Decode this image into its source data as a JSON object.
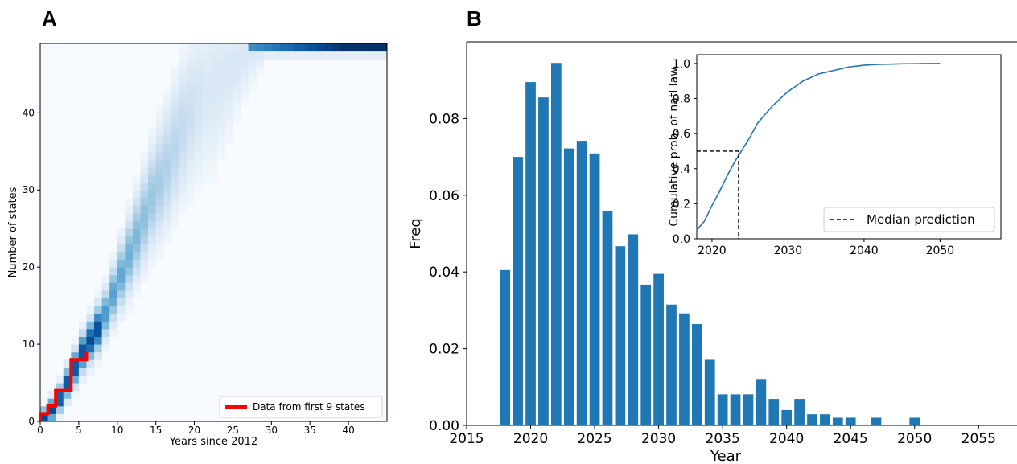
{
  "panel_labels": [
    "A",
    "B"
  ],
  "chart_data": [
    {
      "type": "heatmap",
      "panel": "A",
      "xlabel": "Years since 2012",
      "ylabel": "Number of states",
      "xlim": [
        0,
        45
      ],
      "ylim": [
        0,
        49
      ],
      "xticks": [
        0,
        5,
        10,
        15,
        20,
        25,
        30,
        35,
        40
      ],
      "yticks": [
        0,
        10,
        20,
        30,
        40
      ],
      "colormap": "Blues",
      "note_distribution": "probability density of number of states over time, concentrated along an S-shaped trajectory rising from 0 to 48",
      "density_center": [
        [
          0,
          0
        ],
        [
          1,
          1
        ],
        [
          2,
          2
        ],
        [
          3,
          4
        ],
        [
          4,
          6
        ],
        [
          5,
          8
        ],
        [
          6,
          10
        ],
        [
          7,
          11
        ],
        [
          8,
          13
        ],
        [
          9,
          15
        ],
        [
          10,
          18
        ],
        [
          11,
          20
        ],
        [
          12,
          23
        ],
        [
          13,
          25
        ],
        [
          14,
          28
        ],
        [
          15,
          30
        ],
        [
          16,
          32
        ],
        [
          17,
          34
        ],
        [
          18,
          37
        ],
        [
          19,
          39
        ],
        [
          20,
          41
        ],
        [
          21,
          42
        ],
        [
          22,
          43
        ],
        [
          23,
          44
        ],
        [
          24,
          45
        ],
        [
          25,
          46
        ],
        [
          26,
          47
        ],
        [
          27,
          47.5
        ],
        [
          28,
          48
        ],
        [
          30,
          48
        ],
        [
          35,
          48
        ],
        [
          40,
          48
        ],
        [
          44,
          48
        ]
      ],
      "series": [
        {
          "name": "Data from first 9 states",
          "color": "#ff0000",
          "type": "step",
          "x": [
            0,
            0,
            1,
            1,
            2,
            2,
            3,
            3,
            4,
            4,
            5,
            5,
            6,
            6
          ],
          "y": [
            0,
            1,
            1,
            2,
            2,
            4,
            4,
            4,
            4,
            8,
            8,
            8,
            8,
            9
          ]
        }
      ],
      "legend": {
        "position": "bottom-right",
        "entries": [
          "Data from first 9 states"
        ]
      }
    },
    {
      "type": "bar",
      "panel": "B",
      "xlabel": "Year",
      "ylabel": "Freq",
      "xlim": [
        2015,
        2058
      ],
      "ylim": [
        0,
        0.1
      ],
      "xticks": [
        2015,
        2020,
        2025,
        2030,
        2035,
        2040,
        2045,
        2050,
        2055
      ],
      "yticks": [
        "0.00",
        "0.02",
        "0.04",
        "0.06",
        "0.08"
      ],
      "color": "#1f77b4",
      "categories": [
        2018,
        2019,
        2020,
        2021,
        2022,
        2023,
        2024,
        2025,
        2026,
        2027,
        2028,
        2029,
        2030,
        2031,
        2032,
        2033,
        2034,
        2035,
        2036,
        2037,
        2038,
        2039,
        2040,
        2041,
        2042,
        2043,
        2044,
        2045,
        2047,
        2050
      ],
      "values": [
        0.0405,
        0.07,
        0.0895,
        0.0855,
        0.0945,
        0.0722,
        0.0742,
        0.0709,
        0.0558,
        0.0467,
        0.0498,
        0.0367,
        0.0395,
        0.0315,
        0.0292,
        0.0264,
        0.0171,
        0.0081,
        0.0081,
        0.0081,
        0.0121,
        0.0069,
        0.004,
        0.0069,
        0.0029,
        0.0029,
        0.002,
        0.002,
        0.002,
        0.002
      ]
    },
    {
      "type": "line",
      "panel": "B-inset",
      "ylabel": "Cumulative prob. of natl law",
      "xlim": [
        2018,
        2058
      ],
      "ylim": [
        0,
        1.05
      ],
      "xticks": [
        2020,
        2030,
        2040,
        2050
      ],
      "yticks": [
        "0.0",
        "0.2",
        "0.4",
        "0.6",
        "0.8",
        "1.0"
      ],
      "series": [
        {
          "name": "cumulative",
          "color": "#1f77b4",
          "x": [
            2018,
            2019,
            2020,
            2021,
            2022,
            2023,
            2024,
            2025,
            2026,
            2027,
            2028,
            2029,
            2030,
            2031,
            2032,
            2033,
            2034,
            2035,
            2036,
            2037,
            2038,
            2039,
            2040,
            2041,
            2042,
            2043,
            2044,
            2045,
            2047,
            2050
          ],
          "y": [
            0.05,
            0.1,
            0.19,
            0.27,
            0.36,
            0.44,
            0.51,
            0.58,
            0.66,
            0.71,
            0.76,
            0.8,
            0.84,
            0.87,
            0.9,
            0.92,
            0.94,
            0.95,
            0.96,
            0.97,
            0.98,
            0.985,
            0.99,
            0.993,
            0.995,
            0.996,
            0.997,
            0.998,
            0.999,
            1.0
          ]
        },
        {
          "name": "Median prediction",
          "color": "#000000",
          "style": "dashed",
          "x": [
            2018,
            2023.5,
            2023.5
          ],
          "y": [
            0.5,
            0.5,
            0
          ]
        }
      ],
      "legend": {
        "position": "bottom-right",
        "entries": [
          "Median prediction"
        ]
      }
    }
  ]
}
